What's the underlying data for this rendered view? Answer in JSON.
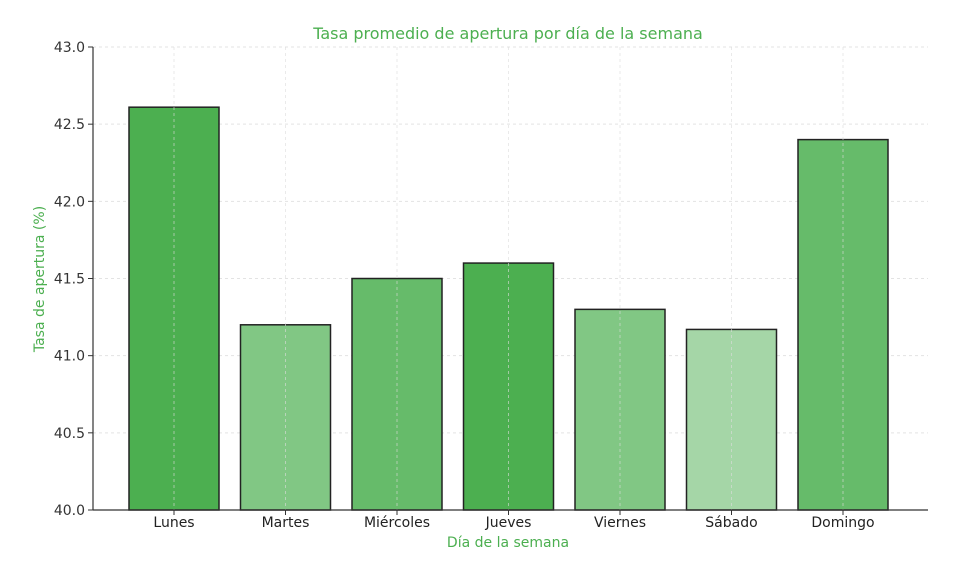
{
  "chart_data": {
    "type": "bar",
    "title": "Tasa promedio de apertura por día de la semana",
    "xlabel": "Día de la semana",
    "ylabel": "Tasa de apertura (%)",
    "categories": [
      "Lunes",
      "Martes",
      "Miércoles",
      "Jueves",
      "Viernes",
      "Sábado",
      "Domingo"
    ],
    "values": [
      42.61,
      41.2,
      41.5,
      41.6,
      41.3,
      41.17,
      42.4
    ],
    "bar_colors": [
      "#4caf50",
      "#81c784",
      "#66bb6a",
      "#4caf50",
      "#81c784",
      "#a5d6a7",
      "#66bb6a"
    ],
    "ylim": [
      40.0,
      43.0
    ],
    "yticks": [
      "40.0",
      "40.5",
      "41.0",
      "41.5",
      "42.0",
      "42.5",
      "43.0"
    ],
    "grid": true,
    "label_color": "#4caf50"
  }
}
